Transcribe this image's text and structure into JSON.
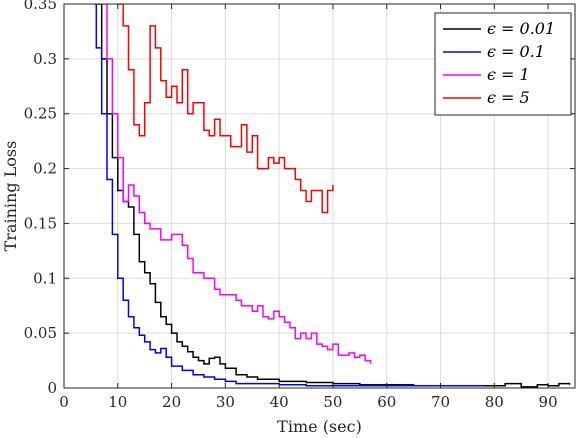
{
  "chart_data": {
    "type": "line",
    "xlabel": "Time (sec)",
    "ylabel": "Training Loss",
    "xlim": [
      0,
      95
    ],
    "ylim": [
      0,
      0.35
    ],
    "x_ticks": [
      0,
      10,
      20,
      30,
      40,
      50,
      60,
      70,
      80,
      90
    ],
    "y_ticks": [
      0,
      0.05,
      0.1,
      0.15,
      0.2,
      0.25,
      0.3,
      0.35
    ],
    "x_tick_labels": [
      "0",
      "10",
      "20",
      "30",
      "40",
      "50",
      "60",
      "70",
      "80",
      "90"
    ],
    "y_tick_labels": [
      "0",
      "0.05",
      "0.1",
      "0.15",
      "0.2",
      "0.25",
      "0.3",
      "0.35"
    ],
    "grid": true,
    "legend_position": "top-right",
    "series": [
      {
        "name": "ϵ = 0.01",
        "color": "#000000",
        "x": [
          6,
          7,
          8,
          9,
          10,
          11,
          12,
          13,
          14,
          15,
          16,
          17,
          18,
          19,
          20,
          21,
          22,
          23,
          24,
          25,
          26,
          27,
          28,
          29,
          30,
          32,
          34,
          36,
          38,
          40,
          45,
          50,
          55,
          60,
          65,
          70,
          75,
          80,
          82,
          85,
          88,
          90,
          92,
          94
        ],
        "y": [
          0.35,
          0.3,
          0.25,
          0.21,
          0.18,
          0.17,
          0.165,
          0.14,
          0.115,
          0.105,
          0.095,
          0.078,
          0.065,
          0.058,
          0.05,
          0.042,
          0.038,
          0.033,
          0.028,
          0.025,
          0.022,
          0.027,
          0.028,
          0.022,
          0.018,
          0.012,
          0.01,
          0.008,
          0.008,
          0.006,
          0.005,
          0.004,
          0.003,
          0.003,
          0.002,
          0.002,
          0.002,
          0.002,
          0.004,
          0.001,
          0.003,
          0.002,
          0.004,
          0.003
        ]
      },
      {
        "name": "ϵ = 0.1",
        "color": "#0000ff",
        "x": [
          5.5,
          6,
          7,
          8,
          9,
          10,
          11,
          12,
          13,
          14,
          15,
          16,
          17,
          18,
          19,
          20,
          22,
          24,
          26,
          28,
          30,
          32,
          35,
          40,
          45,
          50,
          55,
          60,
          65,
          70,
          75,
          78
        ],
        "y": [
          0.35,
          0.31,
          0.25,
          0.19,
          0.14,
          0.1,
          0.08,
          0.065,
          0.055,
          0.048,
          0.042,
          0.035,
          0.032,
          0.036,
          0.028,
          0.02,
          0.016,
          0.012,
          0.01,
          0.008,
          0.006,
          0.004,
          0.004,
          0.003,
          0.002,
          0.002,
          0.002,
          0.002,
          0.002,
          0.002,
          0.002,
          0.002
        ]
      },
      {
        "name": "ϵ = 1",
        "color": "#ff00ff",
        "x": [
          7,
          8,
          9,
          10,
          11,
          12,
          13,
          14,
          15,
          16,
          17,
          18,
          19,
          20,
          21,
          22,
          23,
          24,
          25,
          26,
          27,
          28,
          29,
          30,
          31,
          32,
          33,
          34,
          35,
          36,
          37,
          38,
          39,
          40,
          41,
          42,
          43,
          44,
          45,
          46,
          47,
          48,
          49,
          50,
          51,
          52,
          53,
          54,
          55,
          56,
          57
        ],
        "y": [
          0.35,
          0.3,
          0.25,
          0.21,
          0.17,
          0.185,
          0.175,
          0.16,
          0.15,
          0.145,
          0.145,
          0.135,
          0.135,
          0.14,
          0.14,
          0.13,
          0.118,
          0.105,
          0.105,
          0.1,
          0.1,
          0.09,
          0.085,
          0.085,
          0.085,
          0.08,
          0.075,
          0.075,
          0.07,
          0.075,
          0.065,
          0.063,
          0.07,
          0.065,
          0.06,
          0.055,
          0.045,
          0.05,
          0.045,
          0.05,
          0.04,
          0.038,
          0.035,
          0.04,
          0.03,
          0.03,
          0.032,
          0.028,
          0.03,
          0.025,
          0.022
        ]
      },
      {
        "name": "ϵ = 5",
        "color": "#ff0000",
        "x": [
          10,
          11,
          12,
          13,
          14,
          15,
          16,
          17,
          18,
          19,
          20,
          21,
          22,
          23,
          24,
          25,
          26,
          27,
          28,
          29,
          30,
          31,
          32,
          33,
          34,
          35,
          36,
          37,
          38,
          39,
          40,
          41,
          42,
          43,
          44,
          45,
          46,
          47,
          48,
          49,
          50
        ],
        "y": [
          0.35,
          0.33,
          0.29,
          0.24,
          0.23,
          0.26,
          0.33,
          0.31,
          0.28,
          0.265,
          0.275,
          0.26,
          0.29,
          0.25,
          0.26,
          0.26,
          0.235,
          0.23,
          0.245,
          0.23,
          0.23,
          0.22,
          0.22,
          0.24,
          0.215,
          0.23,
          0.2,
          0.2,
          0.21,
          0.205,
          0.21,
          0.2,
          0.2,
          0.19,
          0.18,
          0.17,
          0.18,
          0.18,
          0.16,
          0.18,
          0.185
        ]
      }
    ]
  }
}
